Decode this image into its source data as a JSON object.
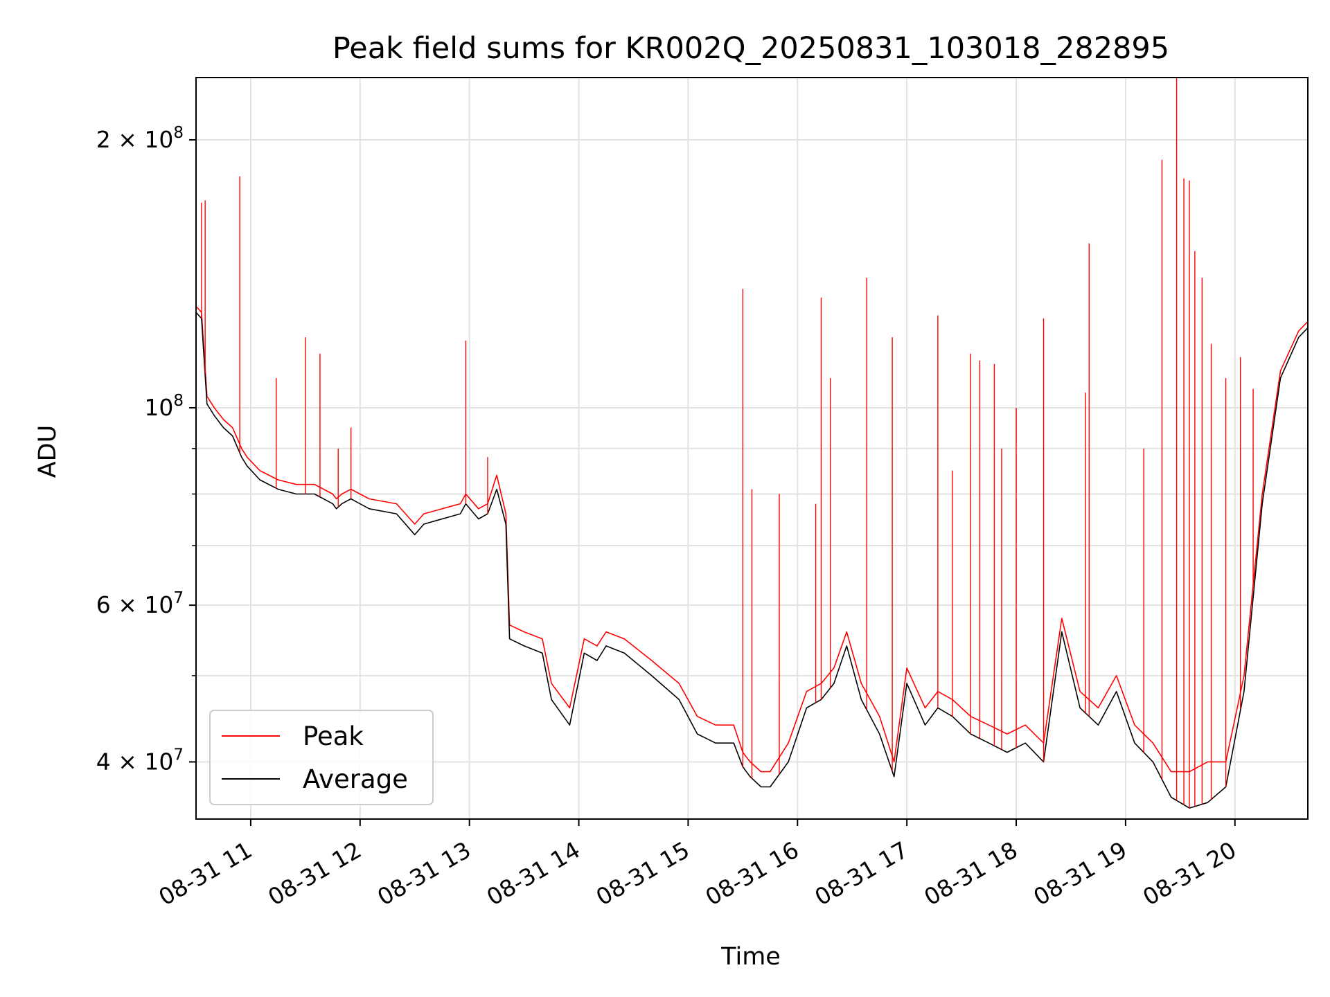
{
  "chart_data": {
    "type": "line",
    "title": "Peak field sums for KR002Q_20250831_103018_282895",
    "xlabel": "Time",
    "ylabel": "ADU",
    "yscale": "log",
    "ylim": [
      34500000,
      235000000
    ],
    "xlim": [
      "2025-08-31 10:30",
      "2025-08-31 20:40"
    ],
    "grid": true,
    "legend_position": "lower-left",
    "x_tick_labels": [
      "08-31 11",
      "08-31 12",
      "08-31 13",
      "08-31 14",
      "08-31 15",
      "08-31 16",
      "08-31 17",
      "08-31 18",
      "08-31 19",
      "08-31 20"
    ],
    "x_tick_times": [
      "2025-08-31 11:00",
      "2025-08-31 12:00",
      "2025-08-31 13:00",
      "2025-08-31 14:00",
      "2025-08-31 15:00",
      "2025-08-31 16:00",
      "2025-08-31 17:00",
      "2025-08-31 18:00",
      "2025-08-31 19:00",
      "2025-08-31 20:00"
    ],
    "y_major_ticks": [
      {
        "value": 40000000,
        "base": "4 × 10",
        "exp": "7"
      },
      {
        "value": 60000000,
        "base": "6 × 10",
        "exp": "7"
      },
      {
        "value": 100000000,
        "base": "10",
        "exp": "8"
      },
      {
        "value": 200000000,
        "base": "2 × 10",
        "exp": "8"
      }
    ],
    "y_minor_ticks": [
      50000000,
      70000000,
      80000000,
      90000000
    ],
    "series": [
      {
        "name": "Peak",
        "color": "#ff0000",
        "x": [
          "2025-08-31 10:30",
          "2025-08-31 10:33",
          "2025-08-31 10:36",
          "2025-08-31 10:40",
          "2025-08-31 10:45",
          "2025-08-31 10:50",
          "2025-08-31 10:53",
          "2025-08-31 10:55",
          "2025-08-31 10:58",
          "2025-08-31 11:05",
          "2025-08-31 11:15",
          "2025-08-31 11:25",
          "2025-08-31 11:30",
          "2025-08-31 11:35",
          "2025-08-31 11:45",
          "2025-08-31 11:47",
          "2025-08-31 11:50",
          "2025-08-31 11:55",
          "2025-08-31 12:05",
          "2025-08-31 12:20",
          "2025-08-31 12:30",
          "2025-08-31 12:35",
          "2025-08-31 12:45",
          "2025-08-31 12:55",
          "2025-08-31 12:58",
          "2025-08-31 13:05",
          "2025-08-31 13:10",
          "2025-08-31 13:15",
          "2025-08-31 13:20",
          "2025-08-31 13:22",
          "2025-08-31 13:30",
          "2025-08-31 13:40",
          "2025-08-31 13:45",
          "2025-08-31 13:55",
          "2025-08-31 14:03",
          "2025-08-31 14:10",
          "2025-08-31 14:15",
          "2025-08-31 14:25",
          "2025-08-31 14:40",
          "2025-08-31 14:55",
          "2025-08-31 15:05",
          "2025-08-31 15:15",
          "2025-08-31 15:25",
          "2025-08-31 15:30",
          "2025-08-31 15:34",
          "2025-08-31 15:40",
          "2025-08-31 15:45",
          "2025-08-31 15:55",
          "2025-08-31 16:05",
          "2025-08-31 16:13",
          "2025-08-31 16:20",
          "2025-08-31 16:27",
          "2025-08-31 16:35",
          "2025-08-31 16:45",
          "2025-08-31 16:53",
          "2025-08-31 17:00",
          "2025-08-31 17:10",
          "2025-08-31 17:17",
          "2025-08-31 17:25",
          "2025-08-31 17:35",
          "2025-08-31 17:45",
          "2025-08-31 17:55",
          "2025-08-31 18:05",
          "2025-08-31 18:15",
          "2025-08-31 18:25",
          "2025-08-31 18:35",
          "2025-08-31 18:45",
          "2025-08-31 18:55",
          "2025-08-31 19:05",
          "2025-08-31 19:15",
          "2025-08-31 19:25",
          "2025-08-31 19:35",
          "2025-08-31 19:45",
          "2025-08-31 19:55",
          "2025-08-31 20:05",
          "2025-08-31 20:15",
          "2025-08-31 20:25",
          "2025-08-31 20:35",
          "2025-08-31 20:40"
        ],
        "values": [
          130000000,
          128000000,
          103000000,
          100000000,
          97000000,
          95000000,
          92000000,
          90000000,
          88000000,
          85000000,
          83000000,
          82000000,
          82000000,
          82000000,
          80000000,
          79000000,
          80000000,
          81000000,
          79000000,
          78000000,
          74000000,
          76000000,
          77000000,
          78000000,
          80000000,
          77000000,
          78000000,
          84000000,
          76000000,
          57000000,
          56000000,
          55000000,
          49000000,
          46000000,
          55000000,
          54000000,
          56000000,
          55000000,
          52000000,
          49000000,
          45000000,
          44000000,
          44000000,
          41000000,
          40000000,
          39000000,
          39000000,
          42000000,
          48000000,
          49000000,
          51000000,
          56000000,
          49000000,
          45000000,
          40000000,
          51000000,
          46000000,
          48000000,
          47000000,
          45000000,
          44000000,
          43000000,
          44000000,
          42000000,
          58000000,
          48000000,
          46000000,
          50000000,
          44000000,
          42000000,
          39000000,
          39000000,
          40000000,
          40000000,
          50000000,
          80000000,
          110000000,
          122000000,
          125000000
        ]
      },
      {
        "name": "Average",
        "color": "#000000",
        "x": [
          "2025-08-31 10:30",
          "2025-08-31 10:33",
          "2025-08-31 10:36",
          "2025-08-31 10:40",
          "2025-08-31 10:45",
          "2025-08-31 10:50",
          "2025-08-31 10:53",
          "2025-08-31 10:55",
          "2025-08-31 10:58",
          "2025-08-31 11:05",
          "2025-08-31 11:15",
          "2025-08-31 11:25",
          "2025-08-31 11:30",
          "2025-08-31 11:35",
          "2025-08-31 11:45",
          "2025-08-31 11:47",
          "2025-08-31 11:50",
          "2025-08-31 11:55",
          "2025-08-31 12:05",
          "2025-08-31 12:20",
          "2025-08-31 12:30",
          "2025-08-31 12:35",
          "2025-08-31 12:45",
          "2025-08-31 12:55",
          "2025-08-31 12:58",
          "2025-08-31 13:05",
          "2025-08-31 13:10",
          "2025-08-31 13:15",
          "2025-08-31 13:20",
          "2025-08-31 13:22",
          "2025-08-31 13:30",
          "2025-08-31 13:40",
          "2025-08-31 13:45",
          "2025-08-31 13:55",
          "2025-08-31 14:03",
          "2025-08-31 14:10",
          "2025-08-31 14:15",
          "2025-08-31 14:25",
          "2025-08-31 14:40",
          "2025-08-31 14:55",
          "2025-08-31 15:05",
          "2025-08-31 15:15",
          "2025-08-31 15:25",
          "2025-08-31 15:30",
          "2025-08-31 15:34",
          "2025-08-31 15:40",
          "2025-08-31 15:45",
          "2025-08-31 15:55",
          "2025-08-31 16:05",
          "2025-08-31 16:13",
          "2025-08-31 16:20",
          "2025-08-31 16:27",
          "2025-08-31 16:35",
          "2025-08-31 16:45",
          "2025-08-31 16:53",
          "2025-08-31 17:00",
          "2025-08-31 17:10",
          "2025-08-31 17:17",
          "2025-08-31 17:25",
          "2025-08-31 17:35",
          "2025-08-31 17:45",
          "2025-08-31 17:55",
          "2025-08-31 18:05",
          "2025-08-31 18:15",
          "2025-08-31 18:25",
          "2025-08-31 18:35",
          "2025-08-31 18:45",
          "2025-08-31 18:55",
          "2025-08-31 19:05",
          "2025-08-31 19:15",
          "2025-08-31 19:25",
          "2025-08-31 19:35",
          "2025-08-31 19:45",
          "2025-08-31 19:55",
          "2025-08-31 20:05",
          "2025-08-31 20:15",
          "2025-08-31 20:25",
          "2025-08-31 20:35",
          "2025-08-31 20:40"
        ],
        "values": [
          128000000,
          126000000,
          101000000,
          98000000,
          95000000,
          93000000,
          90000000,
          88000000,
          86000000,
          83000000,
          81000000,
          80000000,
          80000000,
          80000000,
          78000000,
          77000000,
          78000000,
          79000000,
          77000000,
          76000000,
          72000000,
          74000000,
          75000000,
          76000000,
          78000000,
          75000000,
          76000000,
          81000000,
          74000000,
          55000000,
          54000000,
          53000000,
          47000000,
          44000000,
          53000000,
          52000000,
          54000000,
          53000000,
          50000000,
          47000000,
          43000000,
          42000000,
          42000000,
          39500000,
          38500000,
          37500000,
          37500000,
          40000000,
          46000000,
          47000000,
          49000000,
          54000000,
          47000000,
          43000000,
          38500000,
          49000000,
          44000000,
          46000000,
          45000000,
          43000000,
          42000000,
          41000000,
          42000000,
          40000000,
          56000000,
          46000000,
          44000000,
          48000000,
          42000000,
          40000000,
          36500000,
          35500000,
          36000000,
          37500000,
          48000000,
          78000000,
          108000000,
          120000000,
          123000000
        ]
      }
    ],
    "spikes": {
      "color": "#ff0000",
      "x": [
        "2025-08-31 10:33",
        "2025-08-31 10:35",
        "2025-08-31 10:54",
        "2025-08-31 11:14",
        "2025-08-31 11:30",
        "2025-08-31 11:38",
        "2025-08-31 11:48",
        "2025-08-31 11:55",
        "2025-08-31 12:58",
        "2025-08-31 13:10",
        "2025-08-31 15:30",
        "2025-08-31 15:35",
        "2025-08-31 15:50",
        "2025-08-31 16:10",
        "2025-08-31 16:13",
        "2025-08-31 16:18",
        "2025-08-31 16:38",
        "2025-08-31 16:52",
        "2025-08-31 17:17",
        "2025-08-31 17:25",
        "2025-08-31 17:35",
        "2025-08-31 17:40",
        "2025-08-31 17:48",
        "2025-08-31 17:52",
        "2025-08-31 18:00",
        "2025-08-31 18:15",
        "2025-08-31 18:38",
        "2025-08-31 18:40",
        "2025-08-31 19:10",
        "2025-08-31 19:20",
        "2025-08-31 19:28",
        "2025-08-31 19:32",
        "2025-08-31 19:35",
        "2025-08-31 19:38",
        "2025-08-31 19:42",
        "2025-08-31 19:47",
        "2025-08-31 19:55",
        "2025-08-31 20:03",
        "2025-08-31 20:10"
      ],
      "values": [
        170000000,
        171000000,
        182000000,
        108000000,
        120000000,
        115000000,
        90000000,
        95000000,
        119000000,
        88000000,
        136000000,
        81000000,
        80000000,
        78000000,
        133000000,
        108000000,
        140000000,
        120000000,
        127000000,
        85000000,
        115000000,
        113000000,
        112000000,
        90000000,
        100000000,
        126000000,
        104000000,
        153000000,
        90000000,
        190000000,
        235000000,
        181000000,
        180000000,
        150000000,
        140000000,
        118000000,
        108000000,
        114000000,
        105000000
      ]
    }
  }
}
